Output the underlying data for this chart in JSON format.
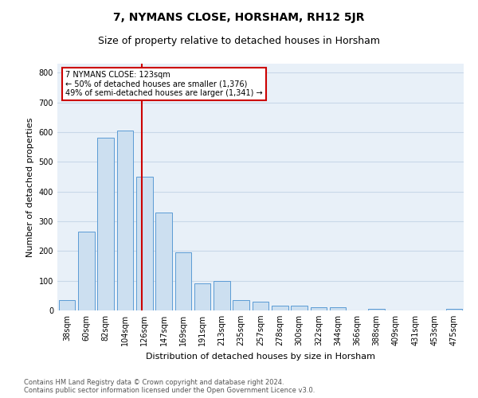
{
  "title": "7, NYMANS CLOSE, HORSHAM, RH12 5JR",
  "subtitle": "Size of property relative to detached houses in Horsham",
  "xlabel": "Distribution of detached houses by size in Horsham",
  "ylabel": "Number of detached properties",
  "categories": [
    "38sqm",
    "60sqm",
    "82sqm",
    "104sqm",
    "126sqm",
    "147sqm",
    "169sqm",
    "191sqm",
    "213sqm",
    "235sqm",
    "257sqm",
    "278sqm",
    "300sqm",
    "322sqm",
    "344sqm",
    "366sqm",
    "388sqm",
    "409sqm",
    "431sqm",
    "453sqm",
    "475sqm"
  ],
  "values": [
    35,
    265,
    580,
    605,
    450,
    328,
    195,
    90,
    100,
    35,
    30,
    15,
    15,
    12,
    10,
    0,
    5,
    0,
    0,
    0,
    5
  ],
  "bar_color": "#ccdff0",
  "bar_edge_color": "#5b9bd5",
  "annotation_line1": "7 NYMANS CLOSE: 123sqm",
  "annotation_line2": "← 50% of detached houses are smaller (1,376)",
  "annotation_line3": "49% of semi-detached houses are larger (1,341) →",
  "annotation_box_color": "#ffffff",
  "annotation_box_edge": "#cc0000",
  "red_line_color": "#cc0000",
  "ylim": [
    0,
    830
  ],
  "yticks": [
    0,
    100,
    200,
    300,
    400,
    500,
    600,
    700,
    800
  ],
  "grid_color": "#c8d8e8",
  "background_color": "#e8f0f8",
  "footer1": "Contains HM Land Registry data © Crown copyright and database right 2024.",
  "footer2": "Contains public sector information licensed under the Open Government Licence v3.0.",
  "title_fontsize": 10,
  "subtitle_fontsize": 9,
  "ylabel_fontsize": 8,
  "xlabel_fontsize": 8,
  "tick_fontsize": 7,
  "annot_fontsize": 7,
  "footer_fontsize": 6
}
